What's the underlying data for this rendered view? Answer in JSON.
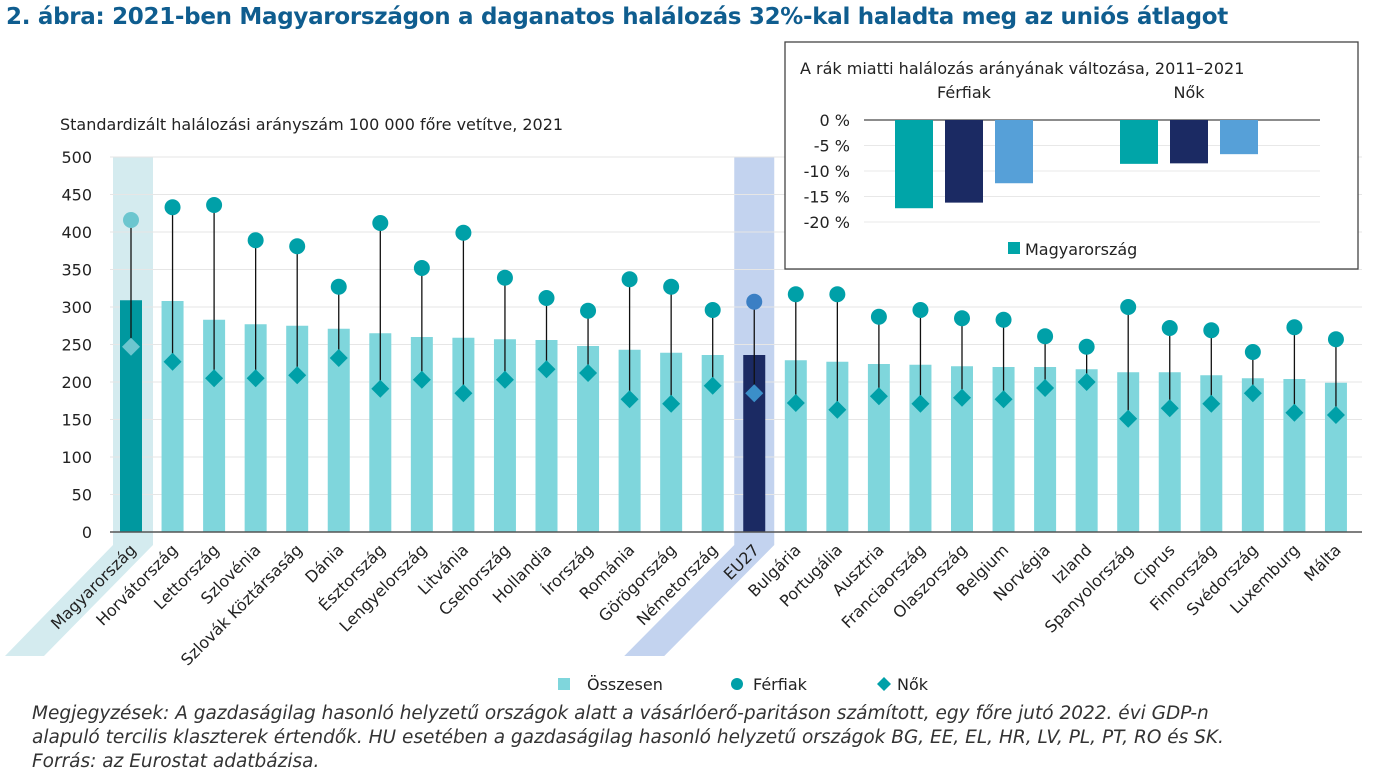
{
  "title": "2. ábra: 2021-ben Magyarországon a daganatos halálozás 32%-kal haladta meg az uniós átlagot",
  "notes": [
    "Megjegyzések: A gazdaságilag hasonló helyzetű országok alatt a vásárlóerő-paritáson számított, egy főre jutó 2022. évi GDP-n",
    "alapuló tercilis klaszterek értendők. HU esetében a gazdaságilag hasonló helyzetű országok BG, EE, EL, HR, LV, PL, PT, RO és SK.",
    "Forrás: az Eurostat adatbázisa."
  ],
  "colors": {
    "total": "#7fd6dc",
    "hu": "#00989f",
    "eu": "#1b2a63",
    "hu_band": "#d4ebef",
    "eu_band": "#c3d3ef",
    "men": "#00a0a8",
    "women": "#00a0a8",
    "hu_marker": "#6cc6cf",
    "eu_men": "#3b7fc4",
    "eu_women": "#3b8fc9",
    "comparison": "#56a0d8"
  },
  "chart_data": [
    {
      "type": "bar",
      "subtitle": "Standardizált halálozási arányszám 100 000 főre vetítve, 2021",
      "ylim": [
        0,
        500
      ],
      "yticks": [
        0,
        50,
        100,
        150,
        200,
        250,
        300,
        350,
        400,
        450,
        500
      ],
      "grid": true,
      "legend_placement": "bottom",
      "categories": [
        "Magyarország",
        "Horvátország",
        "Lettország",
        "Szlovénia",
        "Szlovák Köztársaság",
        "Dánia",
        "Észtország",
        "Lengyelország",
        "Litvánia",
        "Csehország",
        "Hollandia",
        "Írország",
        "Románia",
        "Görögország",
        "Németország",
        "EU27",
        "Bulgária",
        "Portugália",
        "Ausztria",
        "Franciaország",
        "Olaszország",
        "Belgium",
        "Norvégia",
        "Izland",
        "Spanyolország",
        "Ciprus",
        "Finnország",
        "Svédország",
        "Luxemburg",
        "Málta"
      ],
      "highlighted": [
        "Magyarország",
        "EU27"
      ],
      "series": [
        {
          "name": "Összesen",
          "marker": "bar",
          "values": [
            309,
            308,
            283,
            277,
            275,
            271,
            265,
            260,
            259,
            257,
            256,
            248,
            243,
            239,
            236,
            236,
            229,
            227,
            224,
            223,
            221,
            220,
            220,
            217,
            213,
            213,
            209,
            205,
            204,
            199
          ]
        },
        {
          "name": "Férfiak",
          "marker": "circle",
          "values": [
            416,
            433,
            436,
            389,
            381,
            327,
            412,
            352,
            399,
            339,
            312,
            295,
            337,
            327,
            296,
            307,
            317,
            317,
            287,
            296,
            285,
            283,
            261,
            247,
            300,
            272,
            269,
            240,
            273,
            257
          ]
        },
        {
          "name": "Nők",
          "marker": "diamond",
          "values": [
            247,
            227,
            205,
            205,
            209,
            232,
            191,
            203,
            185,
            203,
            217,
            212,
            177,
            171,
            195,
            185,
            172,
            163,
            181,
            171,
            179,
            177,
            192,
            200,
            151,
            165,
            171,
            185,
            159,
            156
          ]
        }
      ]
    },
    {
      "type": "bar",
      "title": "A rák miatti halálozás arányának változása, 2011–2021",
      "ylim": [
        -20,
        0
      ],
      "yticks": [
        "0 %",
        "-5 %",
        "-10 %",
        "-15 %",
        "-20 %"
      ],
      "ytick_values": [
        0,
        -5,
        -10,
        -15,
        -20
      ],
      "categories": [
        "Férfiak",
        "Nők"
      ],
      "legend": [
        "Magyarország"
      ],
      "series": [
        {
          "name": "Magyarország",
          "color": "#00a5a8",
          "values": [
            -17.3,
            -8.6
          ]
        },
        {
          "color": "#1b2a63",
          "values": [
            -16.2,
            -8.5
          ]
        },
        {
          "color": "#56a0d8",
          "values": [
            -12.4,
            -6.7
          ]
        }
      ]
    }
  ]
}
